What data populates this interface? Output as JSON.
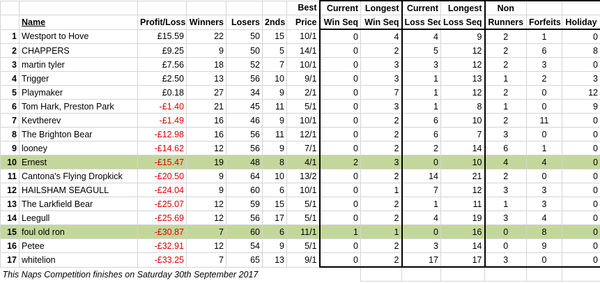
{
  "headers": {
    "name": "Name",
    "profit_loss": "Profit/Loss",
    "winners": "Winners",
    "losers": "Losers",
    "seconds": "2nds",
    "best_price": [
      "Best",
      "Price"
    ],
    "current_win_seq": [
      "Current",
      "Win Seq"
    ],
    "longest_win_seq": [
      "Longest",
      "Win Seq"
    ],
    "current_loss_seq": [
      "Current",
      "Loss Seq"
    ],
    "longest_loss_seq": [
      "Longest",
      "Loss Seq"
    ],
    "non_runners": [
      "Non",
      "Runners"
    ],
    "forfeits": "Forfeits",
    "holiday": "Holiday"
  },
  "rows": [
    {
      "rank": "1",
      "name": "Westport to Hove",
      "pl": "£15.59",
      "neg": false,
      "winners": "22",
      "losers": "50",
      "seconds": "15",
      "best": "10/1",
      "cws": "0",
      "lws": "4",
      "cls": "4",
      "lls": "9",
      "nr": "2",
      "forfeits": "1",
      "holiday": "0",
      "hl": false
    },
    {
      "rank": "2",
      "name": "CHAPPERS",
      "pl": "£9.25",
      "neg": false,
      "winners": "9",
      "losers": "50",
      "seconds": "5",
      "best": "14/1",
      "cws": "0",
      "lws": "2",
      "cls": "5",
      "lls": "12",
      "nr": "2",
      "forfeits": "6",
      "holiday": "8",
      "hl": false
    },
    {
      "rank": "3",
      "name": "martin tyler",
      "pl": "£7.56",
      "neg": false,
      "winners": "18",
      "losers": "52",
      "seconds": "7",
      "best": "10/1",
      "cws": "0",
      "lws": "3",
      "cls": "3",
      "lls": "12",
      "nr": "2",
      "forfeits": "3",
      "holiday": "0",
      "hl": false
    },
    {
      "rank": "4",
      "name": "Trigger",
      "pl": "£2.50",
      "neg": false,
      "winners": "13",
      "losers": "56",
      "seconds": "10",
      "best": "9/1",
      "cws": "0",
      "lws": "3",
      "cls": "1",
      "lls": "13",
      "nr": "1",
      "forfeits": "2",
      "holiday": "3",
      "hl": false
    },
    {
      "rank": "5",
      "name": "Playmaker",
      "pl": "£0.18",
      "neg": false,
      "winners": "27",
      "losers": "34",
      "seconds": "9",
      "best": "2/1",
      "cws": "0",
      "lws": "7",
      "cls": "1",
      "lls": "12",
      "nr": "2",
      "forfeits": "0",
      "holiday": "12",
      "hl": false
    },
    {
      "rank": "6",
      "name": "Tom Hark, Preston Park",
      "pl": "-£1.40",
      "neg": true,
      "winners": "21",
      "losers": "45",
      "seconds": "11",
      "best": "5/1",
      "cws": "0",
      "lws": "3",
      "cls": "1",
      "lls": "8",
      "nr": "1",
      "forfeits": "0",
      "holiday": "9",
      "hl": false
    },
    {
      "rank": "7",
      "name": "Kevtherev",
      "pl": "-£1.49",
      "neg": true,
      "winners": "16",
      "losers": "46",
      "seconds": "9",
      "best": "10/1",
      "cws": "0",
      "lws": "2",
      "cls": "6",
      "lls": "10",
      "nr": "2",
      "forfeits": "11",
      "holiday": "0",
      "hl": false
    },
    {
      "rank": "8",
      "name": "The Brighton Bear",
      "pl": "-£12.98",
      "neg": true,
      "winners": "16",
      "losers": "56",
      "seconds": "11",
      "best": "12/1",
      "cws": "0",
      "lws": "2",
      "cls": "6",
      "lls": "7",
      "nr": "3",
      "forfeits": "0",
      "holiday": "0",
      "hl": false
    },
    {
      "rank": "9",
      "name": "looney",
      "pl": "-£14.62",
      "neg": true,
      "winners": "12",
      "losers": "56",
      "seconds": "9",
      "best": "7/1",
      "cws": "0",
      "lws": "2",
      "cls": "2",
      "lls": "14",
      "nr": "6",
      "forfeits": "1",
      "holiday": "0",
      "hl": false
    },
    {
      "rank": "10",
      "name": "Ernest",
      "pl": "-£15.47",
      "neg": true,
      "winners": "19",
      "losers": "48",
      "seconds": "8",
      "best": "4/1",
      "cws": "2",
      "lws": "3",
      "cls": "0",
      "lls": "10",
      "nr": "4",
      "forfeits": "4",
      "holiday": "0",
      "hl": true
    },
    {
      "rank": "11",
      "name": "Cantona's Flying Dropkick",
      "pl": "-£20.50",
      "neg": true,
      "winners": "9",
      "losers": "64",
      "seconds": "10",
      "best": "13/2",
      "cws": "0",
      "lws": "2",
      "cls": "14",
      "lls": "21",
      "nr": "2",
      "forfeits": "0",
      "holiday": "0",
      "hl": false
    },
    {
      "rank": "12",
      "name": "HAILSHAM SEAGULL",
      "pl": "-£24.04",
      "neg": true,
      "winners": "9",
      "losers": "60",
      "seconds": "6",
      "best": "10/1",
      "cws": "0",
      "lws": "1",
      "cls": "7",
      "lls": "12",
      "nr": "3",
      "forfeits": "3",
      "holiday": "0",
      "hl": false
    },
    {
      "rank": "13",
      "name": "The Larkfield Bear",
      "pl": "-£25.07",
      "neg": true,
      "winners": "12",
      "losers": "59",
      "seconds": "15",
      "best": "5/1",
      "cws": "0",
      "lws": "2",
      "cls": "1",
      "lls": "11",
      "nr": "1",
      "forfeits": "3",
      "holiday": "0",
      "hl": false
    },
    {
      "rank": "14",
      "name": "Leegull",
      "pl": "-£25.69",
      "neg": true,
      "winners": "12",
      "losers": "56",
      "seconds": "17",
      "best": "5/1",
      "cws": "0",
      "lws": "2",
      "cls": "4",
      "lls": "19",
      "nr": "3",
      "forfeits": "4",
      "holiday": "0",
      "hl": false
    },
    {
      "rank": "15",
      "name": "foul old ron",
      "pl": "-£30.87",
      "neg": true,
      "winners": "7",
      "losers": "60",
      "seconds": "6",
      "best": "11/1",
      "cws": "1",
      "lws": "1",
      "cls": "0",
      "lls": "16",
      "nr": "0",
      "forfeits": "8",
      "holiday": "0",
      "hl": true
    },
    {
      "rank": "16",
      "name": "Petee",
      "pl": "-£32.91",
      "neg": true,
      "winners": "12",
      "losers": "54",
      "seconds": "9",
      "best": "5/1",
      "cws": "0",
      "lws": "2",
      "cls": "3",
      "lls": "14",
      "nr": "0",
      "forfeits": "9",
      "holiday": "0",
      "hl": false
    },
    {
      "rank": "17",
      "name": "whitelion",
      "pl": "-£33.25",
      "neg": true,
      "winners": "7",
      "losers": "65",
      "seconds": "13",
      "best": "9/1",
      "cws": "0",
      "lws": "2",
      "cls": "17",
      "lls": "17",
      "nr": "3",
      "forfeits": "0",
      "holiday": "0",
      "hl": false
    }
  ],
  "footer": "This Naps Competition finishes on Saturday 30th September 2017",
  "colors": {
    "highlight": "#c4d79b",
    "negative": "#e00000",
    "gridline": "#d4d4d4"
  }
}
